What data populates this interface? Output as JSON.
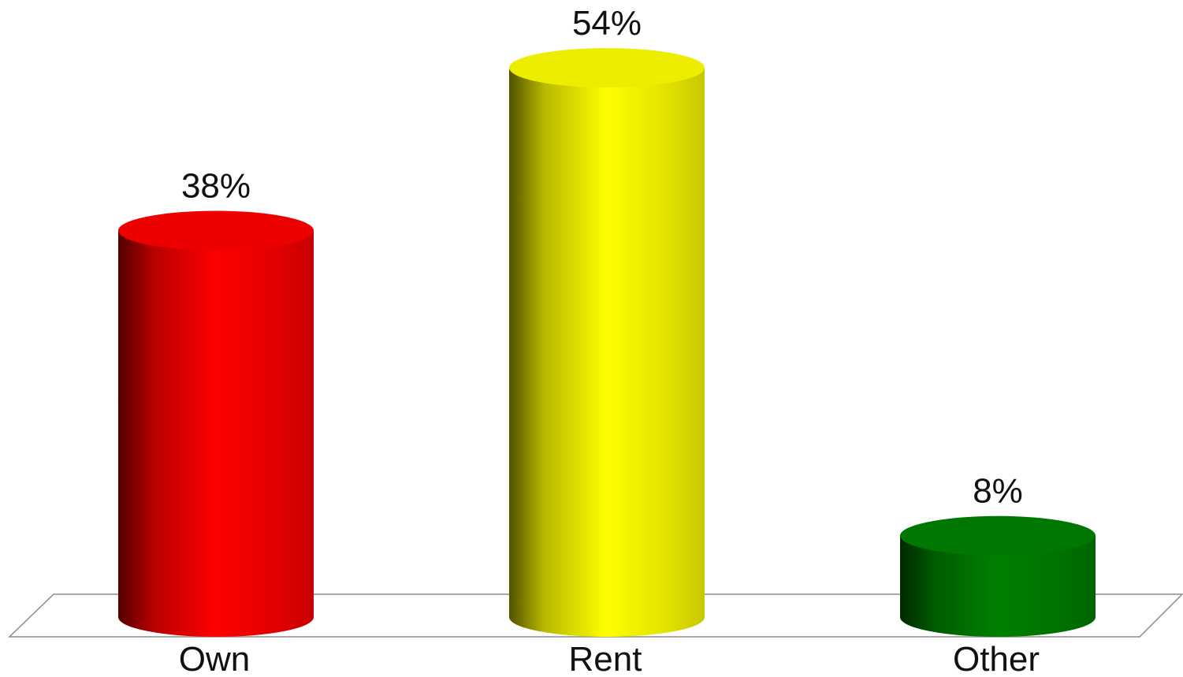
{
  "chart_data": {
    "type": "bar",
    "style": "3d-cylinder",
    "categories": [
      "Own",
      "Rent",
      "Other"
    ],
    "values": [
      38,
      54,
      8
    ],
    "value_labels": [
      "38%",
      "54%",
      "8%"
    ],
    "colors": [
      "#ff0000",
      "#ffff00",
      "#008000"
    ],
    "ylim": [
      0,
      54
    ],
    "grid": false,
    "legend": "none"
  }
}
